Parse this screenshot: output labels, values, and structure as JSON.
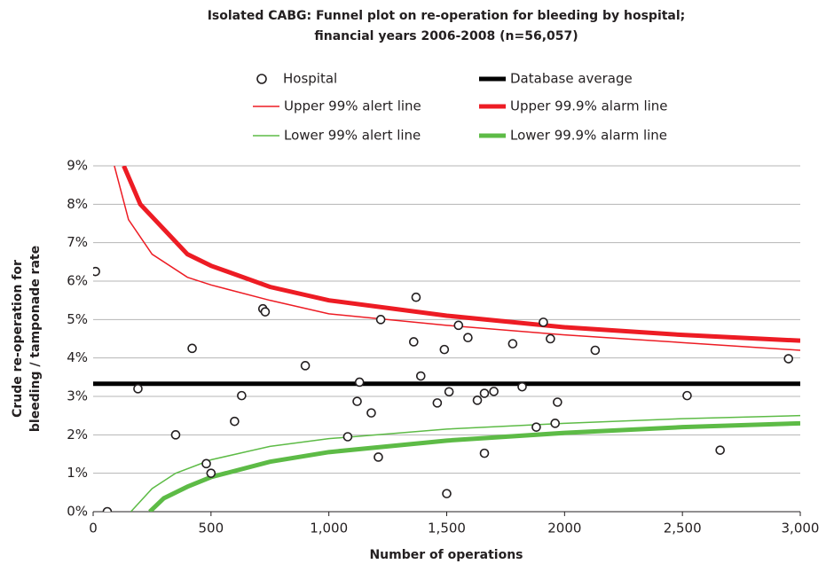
{
  "chart_data": {
    "type": "scatter",
    "title": [
      "Isolated CABG: Funnel plot on re-operation for bleeding by hospital;",
      "financial years 2006-2008 (n=56,057)"
    ],
    "xlabel": "Number of operations",
    "ylabel": [
      "Crude re-operation for",
      "bleeding / tamponade rate"
    ],
    "xlim": [
      0,
      3000
    ],
    "xticks": [
      0,
      500,
      {
        "value": 1000,
        "label": "1,000"
      },
      {
        "value": 1500,
        "label": "1,500"
      },
      {
        "value": 2000,
        "label": "2000"
      },
      {
        "value": 2500,
        "label": "2,500"
      },
      {
        "value": 3000,
        "label": "3,000"
      }
    ],
    "ylim": [
      0,
      9
    ],
    "yticks": [
      {
        "value": 0,
        "label": "0%"
      },
      {
        "value": 1,
        "label": "1%"
      },
      {
        "value": 2,
        "label": "2%"
      },
      {
        "value": 3,
        "label": "3%"
      },
      {
        "value": 4,
        "label": "4%"
      },
      {
        "value": 5,
        "label": "5%"
      },
      {
        "value": 6,
        "label": "6%"
      },
      {
        "value": 7,
        "label": "7%"
      },
      {
        "value": 8,
        "label": "8%"
      },
      {
        "value": 9,
        "label": "9%"
      }
    ],
    "grid": true,
    "series": [
      {
        "name": "Hospital",
        "kind": "points",
        "color": "#231f20",
        "x": [
          10,
          60,
          190,
          350,
          420,
          480,
          500,
          600,
          630,
          720,
          730,
          900,
          1080,
          1120,
          1130,
          1180,
          1210,
          1220,
          1360,
          1370,
          1390,
          1460,
          1490,
          1500,
          1510,
          1550,
          1590,
          1630,
          1660,
          1660,
          1700,
          1780,
          1820,
          1880,
          1910,
          1940,
          1960,
          1970,
          2130,
          2520,
          2660,
          2950
        ],
        "values": [
          6.25,
          0,
          3.2,
          2.0,
          4.25,
          1.25,
          1.0,
          2.35,
          3.02,
          5.28,
          5.2,
          3.8,
          1.95,
          2.87,
          3.37,
          2.57,
          1.42,
          5.0,
          4.42,
          5.58,
          3.53,
          2.83,
          4.22,
          0.47,
          3.12,
          4.85,
          4.53,
          2.9,
          3.08,
          1.52,
          3.13,
          4.37,
          3.25,
          2.2,
          4.93,
          4.5,
          2.3,
          2.85,
          4.2,
          3.02,
          1.6,
          3.98
        ]
      },
      {
        "name": "Database average",
        "kind": "line",
        "width": 5,
        "color": "#000000",
        "x": [
          0,
          3000
        ],
        "values": [
          3.33,
          3.33
        ]
      },
      {
        "name": "Upper 99% alert line",
        "kind": "line",
        "width": 1.5,
        "color": "#ed1c24",
        "x": [
          90,
          150,
          250,
          400,
          500,
          750,
          1000,
          1500,
          2000,
          2500,
          3000
        ],
        "values": [
          9.0,
          7.6,
          6.7,
          6.1,
          5.9,
          5.5,
          5.15,
          4.85,
          4.6,
          4.4,
          4.2
        ]
      },
      {
        "name": "Upper 99.9% alarm line",
        "kind": "line",
        "width": 5,
        "color": "#ed1c24",
        "x": [
          130,
          200,
          300,
          400,
          500,
          750,
          1000,
          1500,
          2000,
          2500,
          3000
        ],
        "values": [
          9.0,
          8.0,
          7.35,
          6.7,
          6.4,
          5.85,
          5.5,
          5.1,
          4.8,
          4.6,
          4.45
        ]
      },
      {
        "name": "Lower 99% alert line",
        "kind": "line",
        "width": 1.5,
        "color": "#5dbb46",
        "x": [
          160,
          250,
          350,
          500,
          750,
          1000,
          1500,
          2000,
          2500,
          3000
        ],
        "values": [
          0,
          0.6,
          1.0,
          1.35,
          1.7,
          1.9,
          2.15,
          2.3,
          2.42,
          2.5
        ]
      },
      {
        "name": "Lower 99.9% alarm line",
        "kind": "line",
        "width": 5,
        "color": "#5dbb46",
        "x": [
          240,
          300,
          400,
          500,
          750,
          1000,
          1500,
          2000,
          2500,
          3000
        ],
        "values": [
          0,
          0.35,
          0.65,
          0.9,
          1.3,
          1.55,
          1.85,
          2.05,
          2.2,
          2.3
        ]
      }
    ]
  }
}
